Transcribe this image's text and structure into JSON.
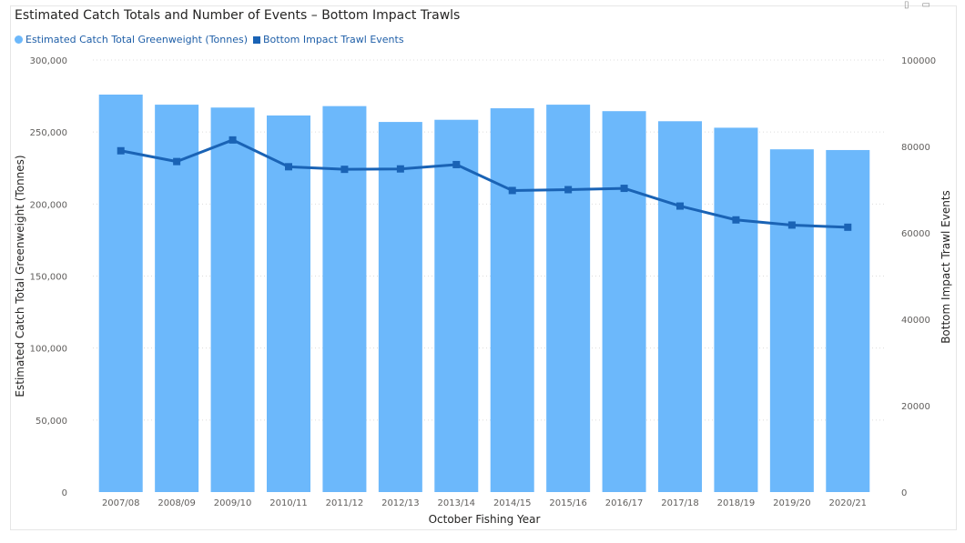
{
  "chart_data": {
    "type": "bar",
    "title": "Estimated Catch Totals and Number of Events – Bottom Impact Trawls",
    "xlabel": "October Fishing Year",
    "ylabel": "Estimated Catch Total Greenweight (Tonnes)",
    "y2label": "Bottom Impact Trawl Events",
    "categories": [
      "2007/08",
      "2008/09",
      "2009/10",
      "2010/11",
      "2011/12",
      "2012/13",
      "2013/14",
      "2014/15",
      "2015/16",
      "2016/17",
      "2017/18",
      "2018/19",
      "2019/20",
      "2020/21"
    ],
    "series": [
      {
        "name": "Estimated Catch Total Greenweight (Tonnes)",
        "type": "bar",
        "axis": "left",
        "color": "#6cb8fb",
        "values": [
          276000,
          269000,
          267000,
          261500,
          268000,
          257000,
          258500,
          266500,
          269000,
          264500,
          257500,
          253000,
          238000,
          237500
        ]
      },
      {
        "name": "Bottom Impact Trawl Events",
        "type": "line",
        "axis": "right",
        "color": "#1a63b5",
        "values": [
          79000,
          76500,
          81500,
          75300,
          74700,
          74800,
          75800,
          69800,
          70000,
          70300,
          66200,
          63000,
          61800,
          61300
        ]
      }
    ],
    "ylim": [
      0,
      300000
    ],
    "y2lim": [
      0,
      100000
    ],
    "yticks": [
      "0",
      "50,000",
      "100,000",
      "150,000",
      "200,000",
      "250,000",
      "300,000"
    ],
    "y2ticks": [
      "0",
      "20000",
      "40000",
      "60000",
      "80000",
      "100000"
    ],
    "legend_position": "top-left",
    "grid": true
  },
  "legend": {
    "bar_label": "Estimated Catch Total Greenweight (Tonnes)",
    "line_label": "Bottom Impact Trawl Events"
  },
  "colors": {
    "bar": "#6cb8fb",
    "line": "#1a63b5",
    "legend_text": "#1f5fa8"
  }
}
